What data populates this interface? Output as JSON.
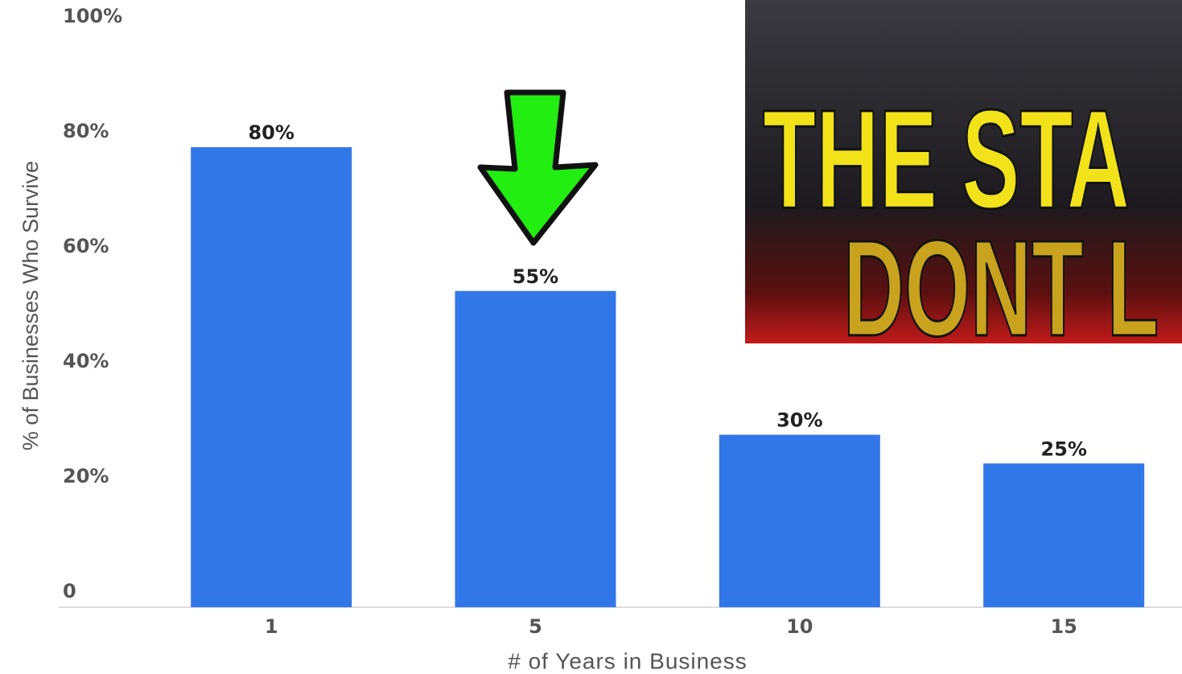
{
  "chart_data": {
    "type": "bar",
    "categories": [
      "1",
      "5",
      "10",
      "15"
    ],
    "values": [
      80,
      55,
      30,
      25
    ],
    "value_labels": [
      "80%",
      "55%",
      "30%",
      "25%"
    ],
    "color": "#3277e8",
    "ylim": [
      0,
      100
    ],
    "yticks": [
      0,
      {
        "value": 20,
        "label": "20%"
      },
      {
        "value": 40,
        "label": "40%"
      },
      {
        "value": 60,
        "label": "60%"
      },
      {
        "value": 80,
        "label": "80%"
      },
      {
        "value": 100,
        "label": "100%"
      }
    ],
    "x_label": "# of Years in Business",
    "y_label": "% of Businesses Who Survive"
  },
  "overlay": {
    "lines": [
      "THE STA",
      "DONT L"
    ]
  }
}
